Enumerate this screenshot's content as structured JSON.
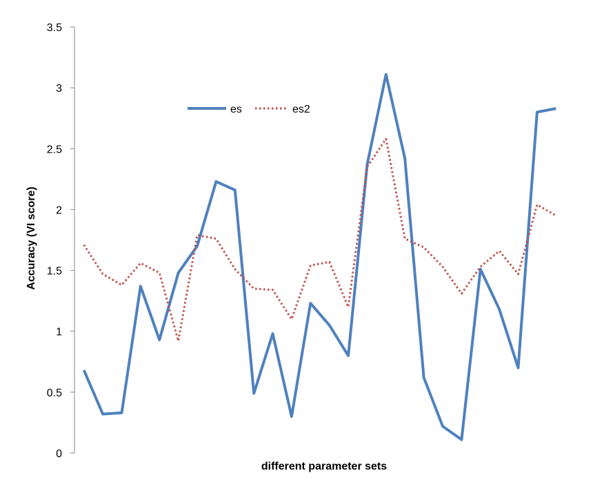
{
  "chart_data": {
    "type": "line",
    "title": "",
    "xlabel": "different parameter sets",
    "ylabel": "Accuracy (VI score)",
    "ylim": [
      0,
      3.5
    ],
    "yticks": [
      "0",
      "0.5",
      "1",
      "1.5",
      "2",
      "2.5",
      "3",
      "3.5"
    ],
    "grid": false,
    "legend_position": "top-center",
    "series": [
      {
        "name": "es",
        "color": "#4F81BD",
        "style": "solid",
        "values": [
          0.68,
          0.32,
          0.33,
          1.37,
          0.93,
          1.48,
          1.7,
          2.23,
          2.16,
          0.49,
          0.98,
          0.3,
          1.23,
          1.05,
          0.8,
          2.37,
          3.11,
          2.42,
          0.62,
          0.22,
          0.11,
          1.51,
          1.18,
          0.7,
          2.8,
          2.83
        ]
      },
      {
        "name": "es2",
        "color": "#C0504D",
        "style": "dotted",
        "values": [
          1.71,
          1.47,
          1.38,
          1.56,
          1.48,
          0.92,
          1.79,
          1.76,
          1.51,
          1.35,
          1.34,
          1.1,
          1.54,
          1.57,
          1.2,
          2.35,
          2.58,
          1.76,
          1.69,
          1.53,
          1.31,
          1.53,
          1.66,
          1.47,
          2.04,
          1.95
        ]
      }
    ]
  }
}
